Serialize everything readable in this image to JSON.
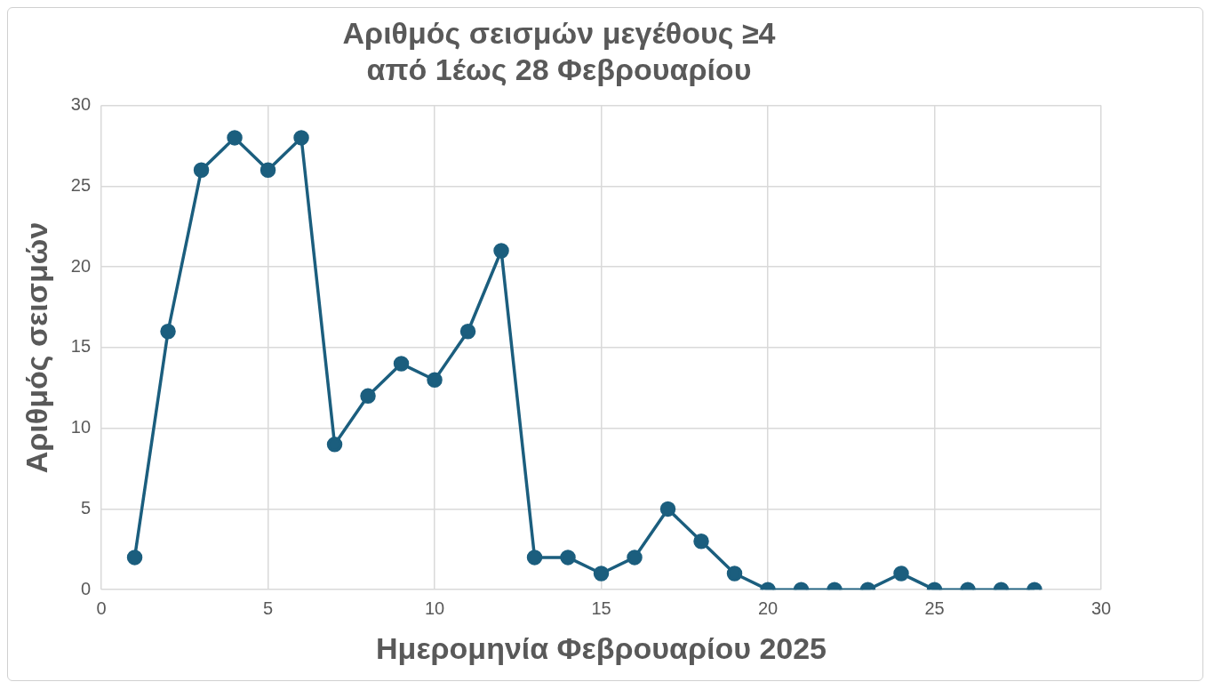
{
  "chart_data": {
    "type": "line",
    "title": "Αριθμός σεισμών μεγέθους ≥4\nαπό 1έως 28 Φεβρουαρίου",
    "xlabel": "Ημερομηνία Φεβρουαρίου 2025",
    "ylabel": "Αριθμός σεισμών",
    "x": [
      1,
      2,
      3,
      4,
      5,
      6,
      7,
      8,
      9,
      10,
      11,
      12,
      13,
      14,
      15,
      16,
      17,
      18,
      19,
      20,
      21,
      22,
      23,
      24,
      25,
      26,
      27,
      28
    ],
    "series": [
      {
        "color": "#1b5e7e",
        "values": [
          2,
          16,
          26,
          28,
          26,
          28,
          9,
          12,
          14,
          13,
          16,
          21,
          2,
          2,
          1,
          2,
          5,
          3,
          1,
          0,
          0,
          0,
          0,
          1,
          0,
          0,
          0,
          0
        ]
      }
    ],
    "xlim": [
      0,
      30
    ],
    "xticks": [
      0,
      5,
      10,
      15,
      20,
      25,
      30
    ],
    "ylim": [
      0,
      30
    ],
    "yticks": [
      0,
      5,
      10,
      15,
      20,
      25,
      30
    ],
    "grid": true,
    "legend": false,
    "marker": "circle",
    "line_style": "solid"
  }
}
